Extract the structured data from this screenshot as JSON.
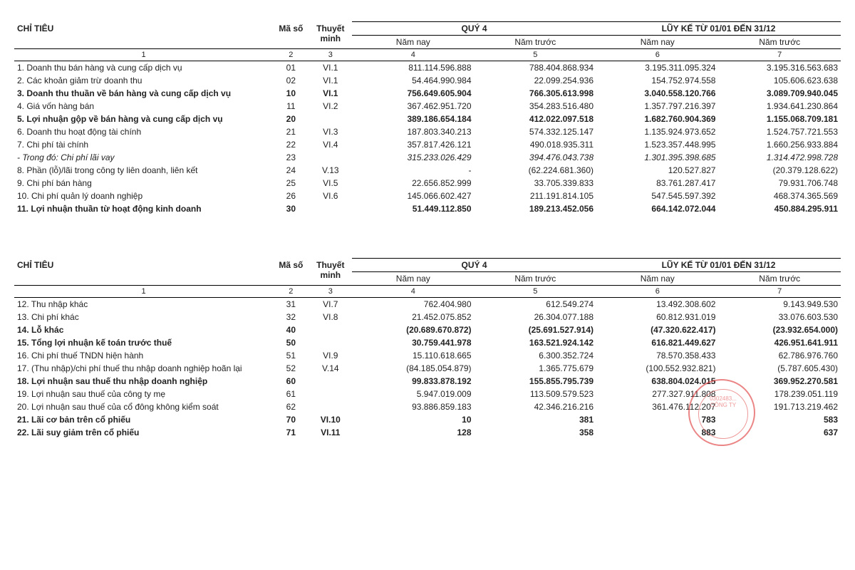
{
  "table1": {
    "headers": {
      "chitieu": "CHỈ TIÊU",
      "maso": "Mã số",
      "thuyetminh": "Thuyết minh",
      "quy4": "QUÝ 4",
      "luyke": "LŨY KẾ TỪ 01/01 ĐẾN 31/12",
      "namnay": "Năm nay",
      "namtruoc": "Năm trước",
      "colnums": [
        "1",
        "2",
        "3",
        "4",
        "5",
        "6",
        "7"
      ]
    },
    "rows": [
      {
        "label": "1. Doanh thu bán hàng và cung cấp dịch vụ",
        "code": "01",
        "note": "VI.1",
        "v4": "811.114.596.888",
        "v5": "788.404.868.934",
        "v6": "3.195.311.095.324",
        "v7": "3.195.316.563.683"
      },
      {
        "label": "2. Các khoản giảm trừ doanh thu",
        "code": "02",
        "note": "VI.1",
        "v4": "54.464.990.984",
        "v5": "22.099.254.936",
        "v6": "154.752.974.558",
        "v7": "105.606.623.638"
      },
      {
        "label": "3. Doanh thu thuần về bán hàng và cung cấp dịch vụ",
        "code": "10",
        "note": "VI.1",
        "v4": "756.649.605.904",
        "v5": "766.305.613.998",
        "v6": "3.040.558.120.766",
        "v7": "3.089.709.940.045",
        "bold": true
      },
      {
        "label": "4. Giá vốn hàng bán",
        "code": "11",
        "note": "VI.2",
        "v4": "367.462.951.720",
        "v5": "354.283.516.480",
        "v6": "1.357.797.216.397",
        "v7": "1.934.641.230.864"
      },
      {
        "label": "5. Lợi nhuận gộp về bán hàng và cung cấp dịch vụ",
        "code": "20",
        "note": "",
        "v4": "389.186.654.184",
        "v5": "412.022.097.518",
        "v6": "1.682.760.904.369",
        "v7": "1.155.068.709.181",
        "bold": true
      },
      {
        "label": "6. Doanh thu hoạt động tài chính",
        "code": "21",
        "note": "VI.3",
        "v4": "187.803.340.213",
        "v5": "574.332.125.147",
        "v6": "1.135.924.973.652",
        "v7": "1.524.757.721.553"
      },
      {
        "label": "7. Chi phí tài chính",
        "code": "22",
        "note": "VI.4",
        "v4": "357.817.426.121",
        "v5": "490.018.935.311",
        "v6": "1.523.357.448.995",
        "v7": "1.660.256.933.884"
      },
      {
        "label": "  - Trong đó: Chi phí lãi vay",
        "code": "23",
        "note": "",
        "v4": "315.233.026.429",
        "v5": "394.476.043.738",
        "v6": "1.301.395.398.685",
        "v7": "1.314.472.998.728",
        "italic": true
      },
      {
        "label": "8. Phần (lỗ)/lãi trong công ty liên doanh, liên kết",
        "code": "24",
        "note": "V.13",
        "v4": "-",
        "v5": "(62.224.681.360)",
        "v6": "120.527.827",
        "v7": "(20.379.128.622)"
      },
      {
        "label": "9. Chi phí bán hàng",
        "code": "25",
        "note": "VI.5",
        "v4": "22.656.852.999",
        "v5": "33.705.339.833",
        "v6": "83.761.287.417",
        "v7": "79.931.706.748"
      },
      {
        "label": "10. Chi phí quản lý doanh nghiệp",
        "code": "26",
        "note": "VI.6",
        "v4": "145.066.602.427",
        "v5": "211.191.814.105",
        "v6": "547.545.597.392",
        "v7": "468.374.365.569"
      },
      {
        "label": "11. Lợi nhuận thuần từ hoạt động kinh doanh",
        "code": "30",
        "note": "",
        "v4": "51.449.112.850",
        "v5": "189.213.452.056",
        "v6": "664.142.072.044",
        "v7": "450.884.295.911",
        "bold": true
      }
    ]
  },
  "table2": {
    "rows": [
      {
        "label": "12. Thu nhập khác",
        "code": "31",
        "note": "VI.7",
        "v4": "762.404.980",
        "v5": "612.549.274",
        "v6": "13.492.308.602",
        "v7": "9.143.949.530"
      },
      {
        "label": "13. Chi phí khác",
        "code": "32",
        "note": "VI.8",
        "v4": "21.452.075.852",
        "v5": "26.304.077.188",
        "v6": "60.812.931.019",
        "v7": "33.076.603.530"
      },
      {
        "label": "14. Lỗ khác",
        "code": "40",
        "note": "",
        "v4": "(20.689.670.872)",
        "v5": "(25.691.527.914)",
        "v6": "(47.320.622.417)",
        "v7": "(23.932.654.000)",
        "bold": true
      },
      {
        "label": "15. Tổng lợi nhuận kế toán trước thuế",
        "code": "50",
        "note": "",
        "v4": "30.759.441.978",
        "v5": "163.521.924.142",
        "v6": "616.821.449.627",
        "v7": "426.951.641.911",
        "bold": true
      },
      {
        "label": "16. Chi phí thuế TNDN hiện hành",
        "code": "51",
        "note": "VI.9",
        "v4": "15.110.618.665",
        "v5": "6.300.352.724",
        "v6": "78.570.358.433",
        "v7": "62.786.976.760"
      },
      {
        "label": "17. (Thu nhập)/chi phí thuế thu nhập doanh nghiệp hoãn lại",
        "code": "52",
        "note": "V.14",
        "v4": "(84.185.054.879)",
        "v5": "1.365.775.679",
        "v6": "(100.552.932.821)",
        "v7": "(5.787.605.430)"
      },
      {
        "label": "18. Lợi nhuận sau thuế thu nhập doanh nghiệp",
        "code": "60",
        "note": "",
        "v4": "99.833.878.192",
        "v5": "155.855.795.739",
        "v6": "638.804.024.015",
        "v7": "369.952.270.581",
        "bold": true
      },
      {
        "label": "19. Lợi nhuận sau thuế của công ty mẹ",
        "code": "61",
        "note": "",
        "v4": "5.947.019.009",
        "v5": "113.509.579.523",
        "v6": "277.327.911.808",
        "v7": "178.239.051.119"
      },
      {
        "label": "20. Lợi nhuận sau thuế của cổ đông không kiểm soát",
        "code": "62",
        "note": "",
        "v4": "93.886.859.183",
        "v5": "42.346.216.216",
        "v6": "361.476.112.207",
        "v7": "191.713.219.462"
      },
      {
        "label": "21. Lãi cơ bản trên cổ phiếu",
        "code": "70",
        "note": "VI.10",
        "v4": "10",
        "v5": "381",
        "v6": "783",
        "v7": "583",
        "bold": true
      },
      {
        "label": "22. Lãi suy giảm trên cổ phiếu",
        "code": "71",
        "note": "VI.11",
        "v4": "128",
        "v5": "358",
        "v6": "883",
        "v7": "637",
        "bold": true
      }
    ]
  },
  "stamp": {
    "text1": "0302483...",
    "text2": "CÔNG TY"
  }
}
